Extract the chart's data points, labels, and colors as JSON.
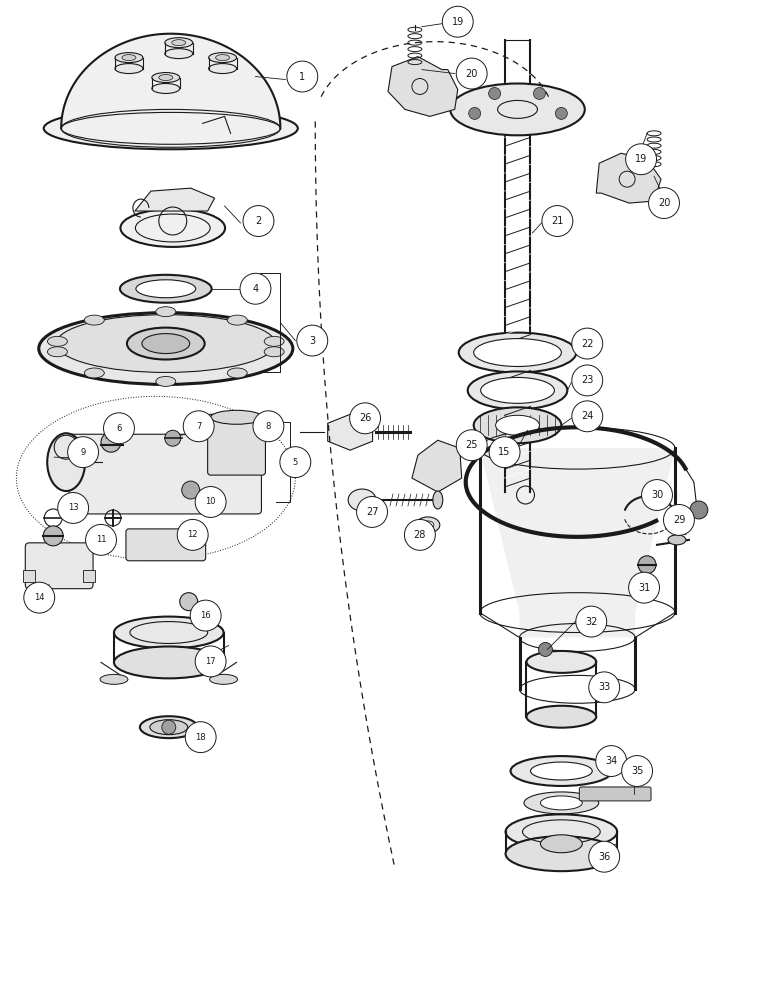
{
  "bg_color": "#ffffff",
  "line_color": "#1a1a1a",
  "fig_width": 7.72,
  "fig_height": 10.0,
  "dpi": 100,
  "xlim": [
    0,
    7.72
  ],
  "ylim": [
    0,
    10.0
  ]
}
